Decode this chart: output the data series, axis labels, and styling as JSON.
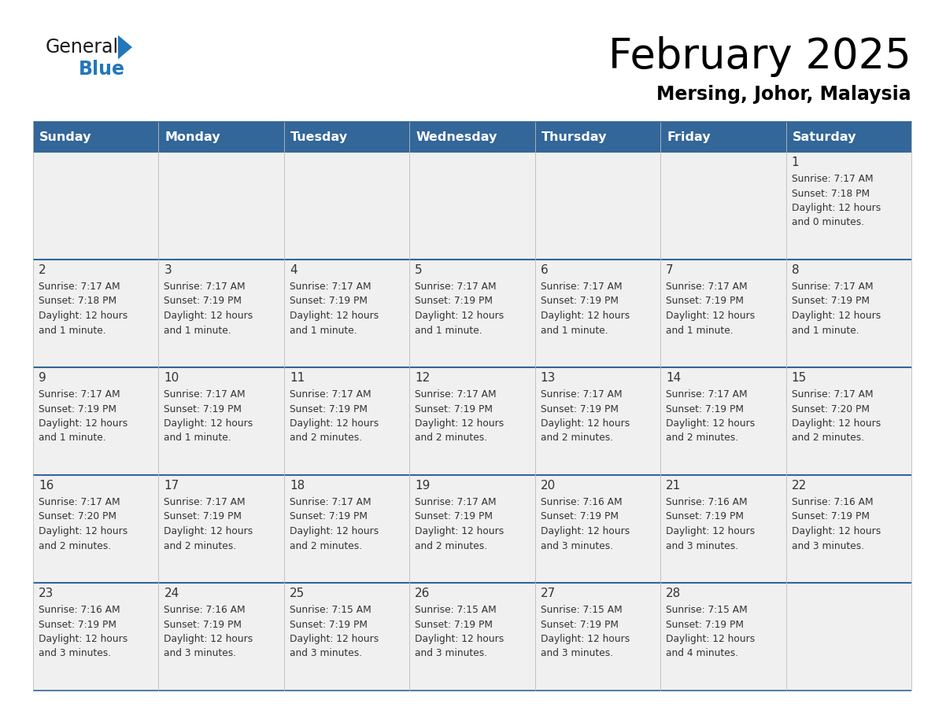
{
  "title": "February 2025",
  "subtitle": "Mersing, Johor, Malaysia",
  "header_color": "#336699",
  "header_text_color": "#ffffff",
  "day_names": [
    "Sunday",
    "Monday",
    "Tuesday",
    "Wednesday",
    "Thursday",
    "Friday",
    "Saturday"
  ],
  "bg_color": "#f0f0f0",
  "text_color": "#333333",
  "line_color": "#336699",
  "logo_black": "#1a1a1a",
  "logo_blue": "#2277bb",
  "days": [
    {
      "day": 1,
      "col": 6,
      "row": 0,
      "sunrise": "7:17 AM",
      "sunset": "7:18 PM",
      "daylight": "12 hours\nand 0 minutes."
    },
    {
      "day": 2,
      "col": 0,
      "row": 1,
      "sunrise": "7:17 AM",
      "sunset": "7:18 PM",
      "daylight": "12 hours\nand 1 minute."
    },
    {
      "day": 3,
      "col": 1,
      "row": 1,
      "sunrise": "7:17 AM",
      "sunset": "7:19 PM",
      "daylight": "12 hours\nand 1 minute."
    },
    {
      "day": 4,
      "col": 2,
      "row": 1,
      "sunrise": "7:17 AM",
      "sunset": "7:19 PM",
      "daylight": "12 hours\nand 1 minute."
    },
    {
      "day": 5,
      "col": 3,
      "row": 1,
      "sunrise": "7:17 AM",
      "sunset": "7:19 PM",
      "daylight": "12 hours\nand 1 minute."
    },
    {
      "day": 6,
      "col": 4,
      "row": 1,
      "sunrise": "7:17 AM",
      "sunset": "7:19 PM",
      "daylight": "12 hours\nand 1 minute."
    },
    {
      "day": 7,
      "col": 5,
      "row": 1,
      "sunrise": "7:17 AM",
      "sunset": "7:19 PM",
      "daylight": "12 hours\nand 1 minute."
    },
    {
      "day": 8,
      "col": 6,
      "row": 1,
      "sunrise": "7:17 AM",
      "sunset": "7:19 PM",
      "daylight": "12 hours\nand 1 minute."
    },
    {
      "day": 9,
      "col": 0,
      "row": 2,
      "sunrise": "7:17 AM",
      "sunset": "7:19 PM",
      "daylight": "12 hours\nand 1 minute."
    },
    {
      "day": 10,
      "col": 1,
      "row": 2,
      "sunrise": "7:17 AM",
      "sunset": "7:19 PM",
      "daylight": "12 hours\nand 1 minute."
    },
    {
      "day": 11,
      "col": 2,
      "row": 2,
      "sunrise": "7:17 AM",
      "sunset": "7:19 PM",
      "daylight": "12 hours\nand 2 minutes."
    },
    {
      "day": 12,
      "col": 3,
      "row": 2,
      "sunrise": "7:17 AM",
      "sunset": "7:19 PM",
      "daylight": "12 hours\nand 2 minutes."
    },
    {
      "day": 13,
      "col": 4,
      "row": 2,
      "sunrise": "7:17 AM",
      "sunset": "7:19 PM",
      "daylight": "12 hours\nand 2 minutes."
    },
    {
      "day": 14,
      "col": 5,
      "row": 2,
      "sunrise": "7:17 AM",
      "sunset": "7:19 PM",
      "daylight": "12 hours\nand 2 minutes."
    },
    {
      "day": 15,
      "col": 6,
      "row": 2,
      "sunrise": "7:17 AM",
      "sunset": "7:20 PM",
      "daylight": "12 hours\nand 2 minutes."
    },
    {
      "day": 16,
      "col": 0,
      "row": 3,
      "sunrise": "7:17 AM",
      "sunset": "7:20 PM",
      "daylight": "12 hours\nand 2 minutes."
    },
    {
      "day": 17,
      "col": 1,
      "row": 3,
      "sunrise": "7:17 AM",
      "sunset": "7:19 PM",
      "daylight": "12 hours\nand 2 minutes."
    },
    {
      "day": 18,
      "col": 2,
      "row": 3,
      "sunrise": "7:17 AM",
      "sunset": "7:19 PM",
      "daylight": "12 hours\nand 2 minutes."
    },
    {
      "day": 19,
      "col": 3,
      "row": 3,
      "sunrise": "7:17 AM",
      "sunset": "7:19 PM",
      "daylight": "12 hours\nand 2 minutes."
    },
    {
      "day": 20,
      "col": 4,
      "row": 3,
      "sunrise": "7:16 AM",
      "sunset": "7:19 PM",
      "daylight": "12 hours\nand 3 minutes."
    },
    {
      "day": 21,
      "col": 5,
      "row": 3,
      "sunrise": "7:16 AM",
      "sunset": "7:19 PM",
      "daylight": "12 hours\nand 3 minutes."
    },
    {
      "day": 22,
      "col": 6,
      "row": 3,
      "sunrise": "7:16 AM",
      "sunset": "7:19 PM",
      "daylight": "12 hours\nand 3 minutes."
    },
    {
      "day": 23,
      "col": 0,
      "row": 4,
      "sunrise": "7:16 AM",
      "sunset": "7:19 PM",
      "daylight": "12 hours\nand 3 minutes."
    },
    {
      "day": 24,
      "col": 1,
      "row": 4,
      "sunrise": "7:16 AM",
      "sunset": "7:19 PM",
      "daylight": "12 hours\nand 3 minutes."
    },
    {
      "day": 25,
      "col": 2,
      "row": 4,
      "sunrise": "7:15 AM",
      "sunset": "7:19 PM",
      "daylight": "12 hours\nand 3 minutes."
    },
    {
      "day": 26,
      "col": 3,
      "row": 4,
      "sunrise": "7:15 AM",
      "sunset": "7:19 PM",
      "daylight": "12 hours\nand 3 minutes."
    },
    {
      "day": 27,
      "col": 4,
      "row": 4,
      "sunrise": "7:15 AM",
      "sunset": "7:19 PM",
      "daylight": "12 hours\nand 3 minutes."
    },
    {
      "day": 28,
      "col": 5,
      "row": 4,
      "sunrise": "7:15 AM",
      "sunset": "7:19 PM",
      "daylight": "12 hours\nand 4 minutes."
    }
  ]
}
